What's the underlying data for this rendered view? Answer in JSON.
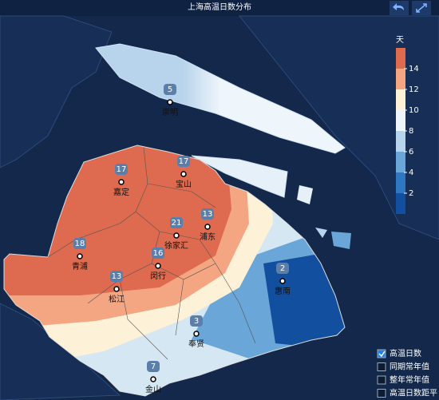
{
  "title": "上海高温日数分布",
  "legend": {
    "unit": "天",
    "ticks": [
      2,
      4,
      6,
      8,
      10,
      12,
      14
    ],
    "colors": [
      "#de6a4f",
      "#f4a582",
      "#fdf1d8",
      "#eef5fb",
      "#b7d4ec",
      "#6aa6d8",
      "#2f77c0",
      "#134f9f"
    ]
  },
  "stations": [
    {
      "name": "崇明",
      "value": 5
    },
    {
      "name": "宝山",
      "value": 17
    },
    {
      "name": "嘉定",
      "value": 17
    },
    {
      "name": "徐家汇",
      "value": 21
    },
    {
      "name": "浦东",
      "value": 13
    },
    {
      "name": "青浦",
      "value": 18
    },
    {
      "name": "闵行",
      "value": 16
    },
    {
      "name": "松江",
      "value": 13
    },
    {
      "name": "惠南",
      "value": 2
    },
    {
      "name": "奉贤",
      "value": 3
    },
    {
      "name": "金山",
      "value": 7
    }
  ],
  "layers": [
    {
      "label": "高温日数",
      "checked": true
    },
    {
      "label": "同期常年值",
      "checked": false
    },
    {
      "label": "整年常年值",
      "checked": false
    },
    {
      "label": "高温日数距平",
      "checked": false
    }
  ]
}
